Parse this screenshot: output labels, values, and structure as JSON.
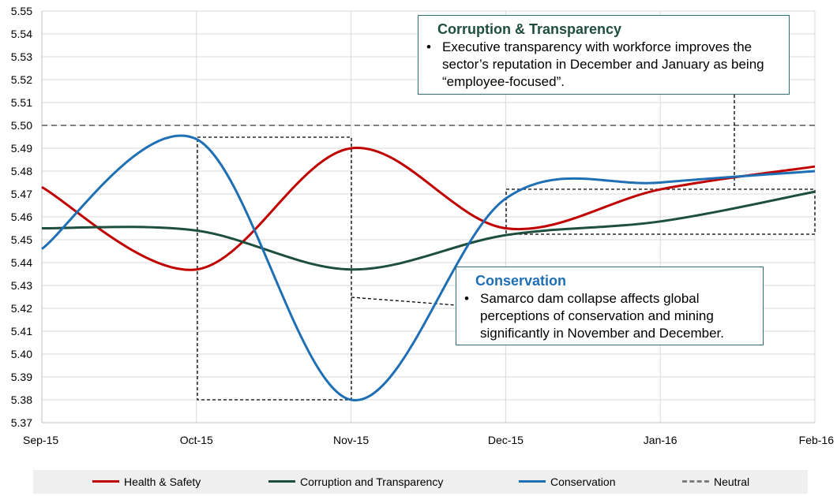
{
  "chart_data": {
    "type": "line",
    "categories": [
      "Sep-15",
      "Oct-15",
      "Nov-15",
      "Dec-15",
      "Jan-16",
      "Feb-16"
    ],
    "ylim": [
      5.37,
      5.55
    ],
    "yticks": [
      "5.37",
      "5.38",
      "5.39",
      "5.40",
      "5.41",
      "5.42",
      "5.43",
      "5.44",
      "5.45",
      "5.46",
      "5.47",
      "5.48",
      "5.49",
      "5.50",
      "5.51",
      "5.52",
      "5.53",
      "5.54",
      "5.55"
    ],
    "grid": true,
    "legend_position": "bottom",
    "series": [
      {
        "name": "Health & Safety",
        "color": "#c00000",
        "values": [
          5.473,
          5.437,
          5.49,
          5.455,
          5.472,
          5.482
        ]
      },
      {
        "name": "Corruption and Transparency",
        "color": "#1e4e3c",
        "values": [
          5.455,
          5.454,
          5.437,
          5.452,
          5.458,
          5.471
        ]
      },
      {
        "name": "Conservation",
        "color": "#1f6fb5",
        "values": [
          5.446,
          5.494,
          5.38,
          5.468,
          5.475,
          5.48
        ]
      }
    ],
    "reference_line": {
      "name": "Neutral",
      "value": 5.5,
      "color": "#7f7f7f"
    },
    "annotations": [
      {
        "title": "Corruption & Transparency",
        "text": "Executive transparency with workforce improves the sector’s reputation in December and January as being “employee-focused”."
      },
      {
        "title": "Conservation",
        "text": "Samarco dam collapse affects global perceptions of conservation and mining significantly in November and December."
      }
    ]
  }
}
